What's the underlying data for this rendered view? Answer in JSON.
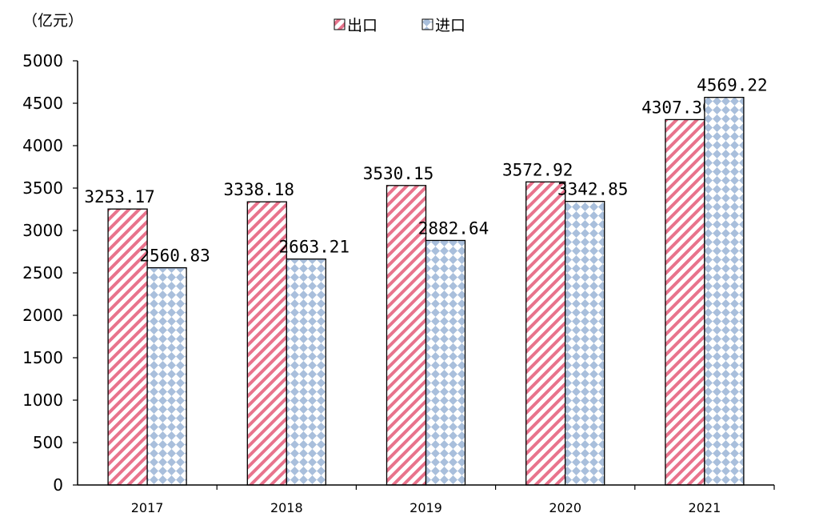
{
  "chart_data": {
    "type": "bar",
    "unit_label": "（亿元）",
    "categories": [
      "2017",
      "2018",
      "2019",
      "2020",
      "2021"
    ],
    "series": [
      {
        "name": "出口",
        "values": [
          3253.17,
          3338.18,
          3530.15,
          3572.92,
          4307.3
        ],
        "labels": [
          "3253.17",
          "3338.18",
          "3530.15",
          "3572.92",
          "4307.30"
        ],
        "color": "#e8738c",
        "pattern": "diagonal-stripes"
      },
      {
        "name": "进口",
        "values": [
          2560.83,
          2663.21,
          2882.64,
          3342.85,
          4569.22
        ],
        "labels": [
          "2560.83",
          "2663.21",
          "2882.64",
          "3342.85",
          "4569.22"
        ],
        "color": "#a9bfdc",
        "pattern": "diamond-checker"
      }
    ],
    "ylim": [
      0,
      5000
    ],
    "yticks": [
      0,
      500,
      1000,
      1500,
      2000,
      2500,
      3000,
      3500,
      4000,
      4500,
      5000
    ],
    "legend_position": "top-center",
    "grid": false
  }
}
